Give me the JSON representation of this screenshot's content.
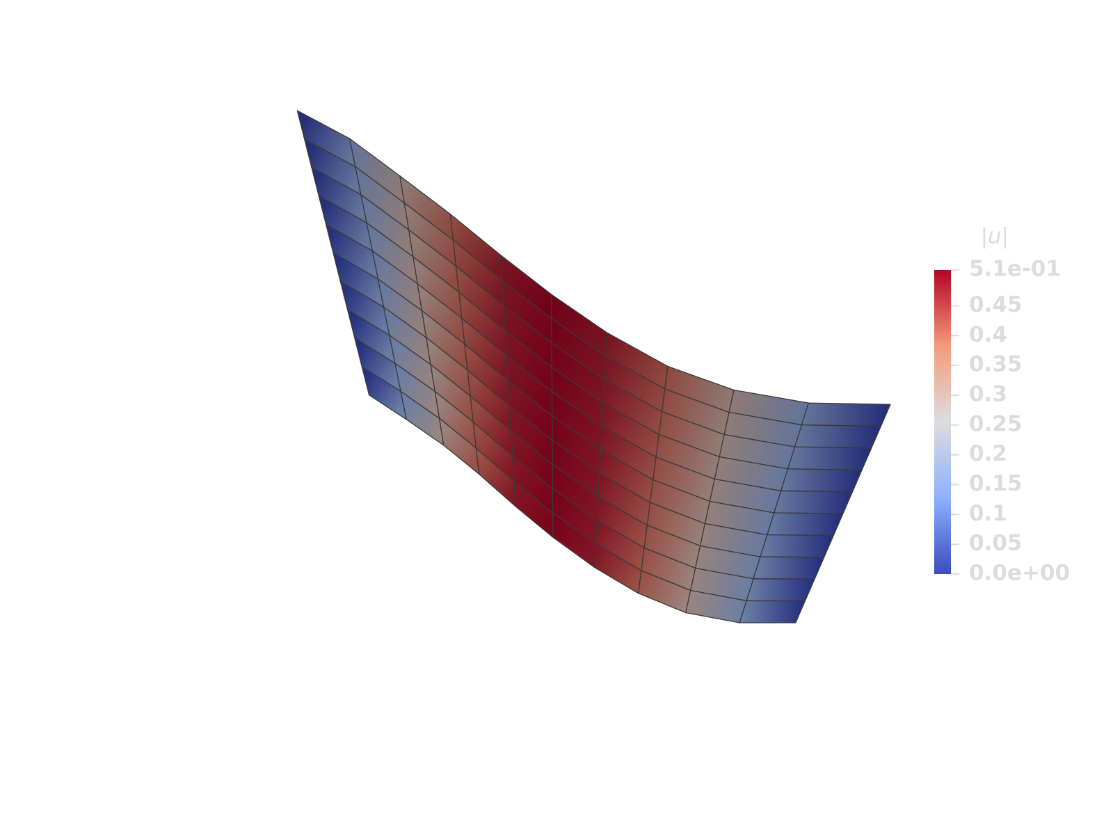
{
  "colorbar": {
    "title": "|u|",
    "range": [
      0,
      0.51
    ],
    "ticks": [
      {
        "value": 0.51,
        "label": "5.1e-01"
      },
      0.45,
      0.4,
      0.35,
      0.3,
      0.25,
      0.2,
      0.15,
      0.1,
      0.05,
      {
        "value": 0,
        "label": "0.0e+00"
      }
    ]
  }
}
